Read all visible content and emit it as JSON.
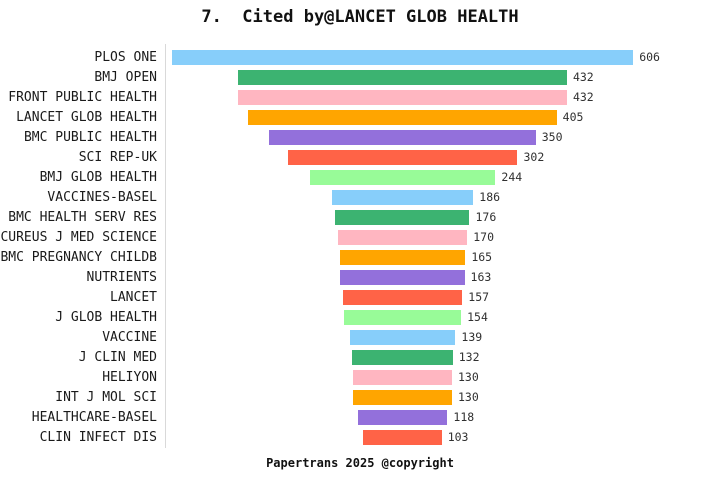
{
  "title": "7.  Cited by@LANCET GLOB HEALTH",
  "footer": "Papertrans 2025 @copyright",
  "chart_data": {
    "type": "bar",
    "orientation": "horizontal-centered-funnel",
    "title": "7.  Cited by@LANCET GLOB HEALTH",
    "categories": [
      "PLOS ONE",
      "BMJ OPEN",
      "FRONT PUBLIC HEALTH",
      "LANCET GLOB HEALTH",
      "BMC PUBLIC HEALTH",
      "SCI REP-UK",
      "BMJ GLOB HEALTH",
      "VACCINES-BASEL",
      "BMC HEALTH SERV RES",
      "CUREUS J MED SCIENCE",
      "BMC PREGNANCY CHILDB",
      "NUTRIENTS",
      "LANCET",
      "J GLOB HEALTH",
      "VACCINE",
      "J CLIN MED",
      "HELIYON",
      "INT J MOL SCI",
      "HEALTHCARE-BASEL",
      "CLIN INFECT DIS"
    ],
    "values": [
      606,
      432,
      432,
      405,
      350,
      302,
      244,
      186,
      176,
      170,
      165,
      163,
      157,
      154,
      139,
      132,
      130,
      130,
      118,
      103
    ],
    "value_labels_shown": true,
    "max_value": 606,
    "palette": [
      "#87CEFA",
      "#3CB371",
      "#FFB6C1",
      "#FFA500",
      "#9370DB",
      "#FF6347",
      "#98FB98"
    ],
    "axis_line_color": "#d9d9d9",
    "value_label_color": "#303030",
    "xlabel": "",
    "ylabel": "",
    "grid": false,
    "legend": false
  }
}
